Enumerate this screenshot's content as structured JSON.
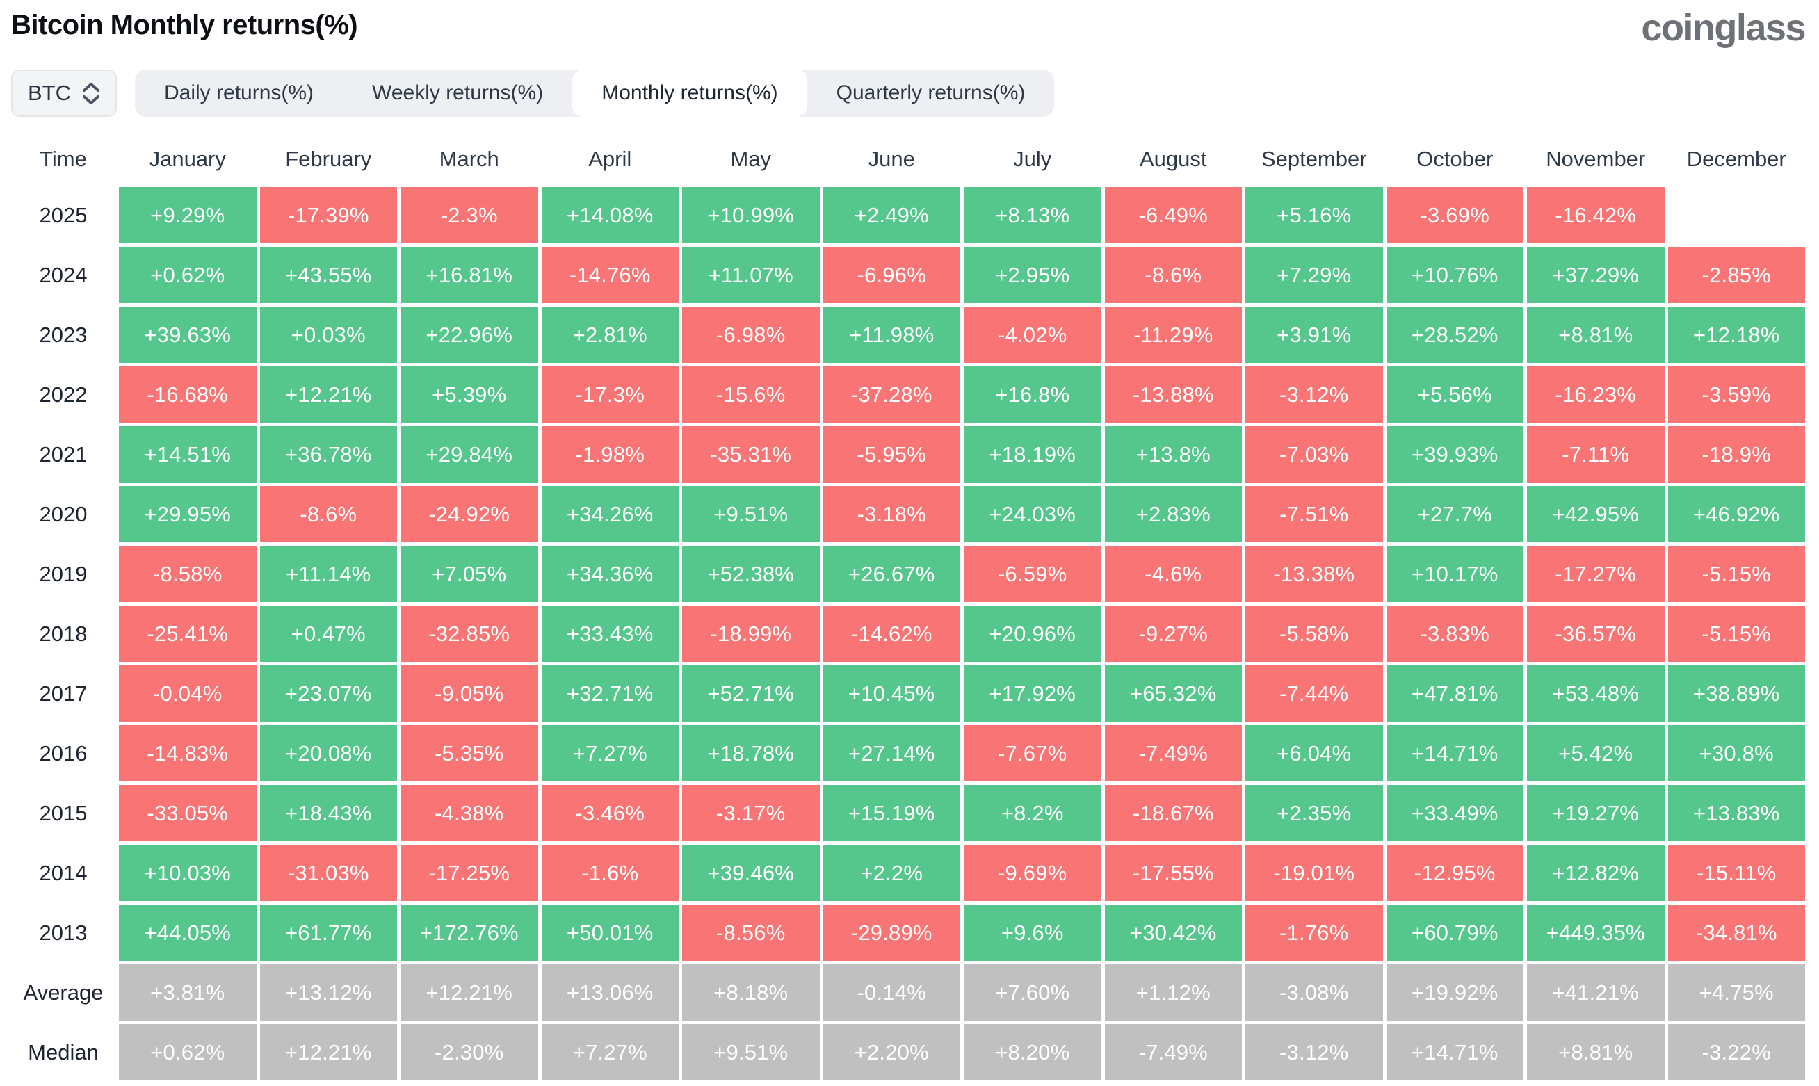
{
  "header": {
    "title": "Bitcoin Monthly returns(%)",
    "logo": "coinglass"
  },
  "controls": {
    "symbol": "BTC",
    "tabs": [
      {
        "label": "Daily returns(%)",
        "active": false
      },
      {
        "label": "Weekly returns(%)",
        "active": false
      },
      {
        "label": "Monthly returns(%)",
        "active": true
      },
      {
        "label": "Quarterly returns(%)",
        "active": false
      }
    ]
  },
  "chart_data": {
    "type": "heatmap",
    "title": "Bitcoin Monthly returns(%)",
    "columns": [
      "Time",
      "January",
      "February",
      "March",
      "April",
      "May",
      "June",
      "July",
      "August",
      "September",
      "October",
      "November",
      "December"
    ],
    "colors": {
      "positive": "#55c78d",
      "negative": "#f97474",
      "summary": "#c0c0c0"
    },
    "rows": [
      {
        "label": "2025",
        "kind": "year",
        "values": [
          "+9.29%",
          "-17.39%",
          "-2.3%",
          "+14.08%",
          "+10.99%",
          "+2.49%",
          "+8.13%",
          "-6.49%",
          "+5.16%",
          "-3.69%",
          "-16.42%",
          null
        ]
      },
      {
        "label": "2024",
        "kind": "year",
        "values": [
          "+0.62%",
          "+43.55%",
          "+16.81%",
          "-14.76%",
          "+11.07%",
          "-6.96%",
          "+2.95%",
          "-8.6%",
          "+7.29%",
          "+10.76%",
          "+37.29%",
          "-2.85%"
        ]
      },
      {
        "label": "2023",
        "kind": "year",
        "values": [
          "+39.63%",
          "+0.03%",
          "+22.96%",
          "+2.81%",
          "-6.98%",
          "+11.98%",
          "-4.02%",
          "-11.29%",
          "+3.91%",
          "+28.52%",
          "+8.81%",
          "+12.18%"
        ]
      },
      {
        "label": "2022",
        "kind": "year",
        "values": [
          "-16.68%",
          "+12.21%",
          "+5.39%",
          "-17.3%",
          "-15.6%",
          "-37.28%",
          "+16.8%",
          "-13.88%",
          "-3.12%",
          "+5.56%",
          "-16.23%",
          "-3.59%"
        ]
      },
      {
        "label": "2021",
        "kind": "year",
        "values": [
          "+14.51%",
          "+36.78%",
          "+29.84%",
          "-1.98%",
          "-35.31%",
          "-5.95%",
          "+18.19%",
          "+13.8%",
          "-7.03%",
          "+39.93%",
          "-7.11%",
          "-18.9%"
        ]
      },
      {
        "label": "2020",
        "kind": "year",
        "values": [
          "+29.95%",
          "-8.6%",
          "-24.92%",
          "+34.26%",
          "+9.51%",
          "-3.18%",
          "+24.03%",
          "+2.83%",
          "-7.51%",
          "+27.7%",
          "+42.95%",
          "+46.92%"
        ]
      },
      {
        "label": "2019",
        "kind": "year",
        "values": [
          "-8.58%",
          "+11.14%",
          "+7.05%",
          "+34.36%",
          "+52.38%",
          "+26.67%",
          "-6.59%",
          "-4.6%",
          "-13.38%",
          "+10.17%",
          "-17.27%",
          "-5.15%"
        ]
      },
      {
        "label": "2018",
        "kind": "year",
        "values": [
          "-25.41%",
          "+0.47%",
          "-32.85%",
          "+33.43%",
          "-18.99%",
          "-14.62%",
          "+20.96%",
          "-9.27%",
          "-5.58%",
          "-3.83%",
          "-36.57%",
          "-5.15%"
        ]
      },
      {
        "label": "2017",
        "kind": "year",
        "values": [
          "-0.04%",
          "+23.07%",
          "-9.05%",
          "+32.71%",
          "+52.71%",
          "+10.45%",
          "+17.92%",
          "+65.32%",
          "-7.44%",
          "+47.81%",
          "+53.48%",
          "+38.89%"
        ]
      },
      {
        "label": "2016",
        "kind": "year",
        "values": [
          "-14.83%",
          "+20.08%",
          "-5.35%",
          "+7.27%",
          "+18.78%",
          "+27.14%",
          "-7.67%",
          "-7.49%",
          "+6.04%",
          "+14.71%",
          "+5.42%",
          "+30.8%"
        ]
      },
      {
        "label": "2015",
        "kind": "year",
        "values": [
          "-33.05%",
          "+18.43%",
          "-4.38%",
          "-3.46%",
          "-3.17%",
          "+15.19%",
          "+8.2%",
          "-18.67%",
          "+2.35%",
          "+33.49%",
          "+19.27%",
          "+13.83%"
        ]
      },
      {
        "label": "2014",
        "kind": "year",
        "values": [
          "+10.03%",
          "-31.03%",
          "-17.25%",
          "-1.6%",
          "+39.46%",
          "+2.2%",
          "-9.69%",
          "-17.55%",
          "-19.01%",
          "-12.95%",
          "+12.82%",
          "-15.11%"
        ]
      },
      {
        "label": "2013",
        "kind": "year",
        "values": [
          "+44.05%",
          "+61.77%",
          "+172.76%",
          "+50.01%",
          "-8.56%",
          "-29.89%",
          "+9.6%",
          "+30.42%",
          "-1.76%",
          "+60.79%",
          "+449.35%",
          "-34.81%"
        ]
      },
      {
        "label": "Average",
        "kind": "summary",
        "values": [
          "+3.81%",
          "+13.12%",
          "+12.21%",
          "+13.06%",
          "+8.18%",
          "-0.14%",
          "+7.60%",
          "+1.12%",
          "-3.08%",
          "+19.92%",
          "+41.21%",
          "+4.75%"
        ]
      },
      {
        "label": "Median",
        "kind": "summary",
        "values": [
          "+0.62%",
          "+12.21%",
          "-2.30%",
          "+7.27%",
          "+9.51%",
          "+2.20%",
          "+8.20%",
          "-7.49%",
          "-3.12%",
          "+14.71%",
          "+8.81%",
          "-3.22%"
        ]
      }
    ]
  }
}
